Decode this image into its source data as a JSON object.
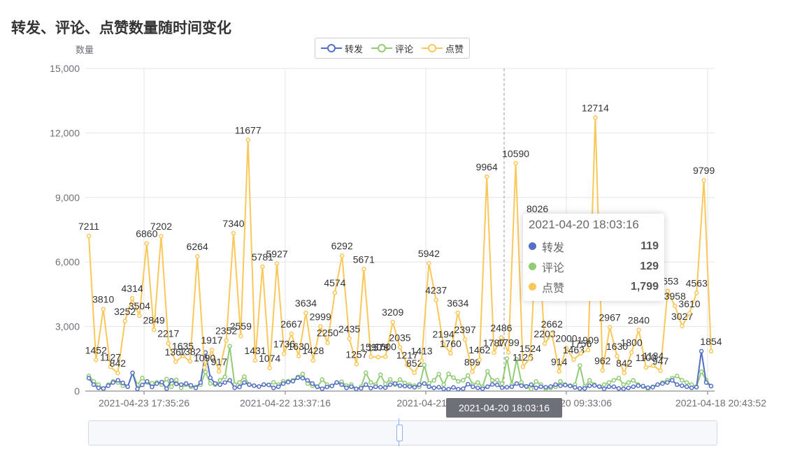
{
  "chart_data": {
    "type": "line",
    "title": "转发、评论、点赞数量随时间变化",
    "ylabel": "数量",
    "ylim": [
      0,
      15000
    ],
    "yticks": [
      "0",
      "3,000",
      "6,000",
      "9,000",
      "12,000",
      "15,000"
    ],
    "xtick_labels": [
      "2021-04-23 17:35:26",
      "2021-04-22 13:37:16",
      "2021-04-21 1",
      "2021-04-20 09:33:06",
      "2021-04-18 20:43:52"
    ],
    "colors": {
      "转发": "#5470c6",
      "评论": "#91cc75",
      "点赞": "#fac858"
    },
    "grid": "vertical-and-horizontal",
    "legend_position": "top-center",
    "series": [
      {
        "name": "转发",
        "values": [
          600,
          300,
          150,
          120,
          250,
          400,
          500,
          380,
          200,
          848,
          100,
          290,
          450,
          190,
          350,
          420,
          109,
          500,
          330,
          300,
          350,
          270,
          150,
          400,
          1795,
          620,
          350,
          300,
          400,
          500,
          155,
          192,
          400,
          300,
          250,
          210,
          300,
          289,
          148,
          200,
          350,
          420,
          460,
          620,
          600,
          500,
          350,
          200,
          110,
          190,
          240,
          400,
          300,
          150,
          200,
          100,
          130,
          300,
          140,
          200,
          180,
          160,
          300,
          350,
          250,
          230,
          210,
          175,
          300,
          350,
          200,
          150,
          180,
          100,
          87,
          172,
          90,
          110,
          320,
          200,
          150,
          110,
          200,
          310,
          290,
          160,
          180,
          200,
          350,
          250,
          220,
          300,
          150,
          200,
          180,
          210,
          300,
          250,
          280,
          240,
          170,
          120,
          119,
          250,
          260,
          210,
          100,
          200,
          200,
          120,
          100,
          150,
          200,
          250,
          230,
          160,
          180,
          300,
          350,
          400,
          500,
          300,
          250,
          200,
          150,
          180,
          1854,
          400,
          230
        ]
      },
      {
        "name": "评论",
        "values": [
          705,
          450,
          300,
          100,
          300,
          450,
          400,
          250,
          200,
          848,
          290,
          604,
          400,
          367,
          410,
          300,
          560,
          200,
          520,
          150,
          300,
          197,
          190,
          300,
          890,
          350,
          300,
          500,
          660,
          2086,
          300,
          400,
          675,
          300,
          250,
          210,
          300,
          289,
          406,
          300,
          450,
          462,
          500,
          660,
          793,
          350,
          250,
          190,
          535,
          300,
          240,
          400,
          436,
          250,
          300,
          100,
          200,
          852,
          400,
          300,
          762,
          330,
          541,
          300,
          537,
          375,
          300,
          250,
          200,
          1209,
          370,
          500,
          787,
          300,
          800,
          625,
          450,
          500,
          723,
          300,
          400,
          200,
          914,
          500,
          508,
          350,
          1509,
          300,
          1474,
          400,
          200,
          100,
          445,
          300,
          100,
          150,
          200,
          450,
          300,
          250,
          300,
          1184,
          200,
          500,
          300,
          200,
          300,
          400,
          500,
          600,
          300,
          400,
          500,
          300,
          200,
          100,
          200,
          300,
          400,
          500,
          600,
          700,
          500,
          400,
          300,
          200,
          902,
          514,
          230
        ]
      },
      {
        "name": "点赞",
        "values": [
          7211,
          1452,
          3810,
          1127,
          842,
          3252,
          4314,
          3504,
          6860,
          2849,
          7202,
          2217,
          1367,
          1635,
          1382,
          6264,
          1090,
          1917,
          917,
          2352,
          7340,
          2559,
          11677,
          1431,
          5781,
          1074,
          5927,
          1736,
          2667,
          1630,
          3634,
          1428,
          2999,
          2250,
          4574,
          6292,
          2435,
          1257,
          5671,
          1590,
          1578,
          1600,
          3209,
          2035,
          1217,
          852,
          1413,
          5942,
          4237,
          2194,
          1760,
          3634,
          2397,
          899,
          1462,
          9964,
          1787,
          2486,
          1799,
          10590,
          1126,
          1524,
          8026,
          2208,
          2662,
          914,
          2000,
          1463,
          1756,
          1909,
          12714,
          962,
          2967,
          1630,
          842,
          1800,
          2840,
          1100,
          1184,
          947,
          4653,
          3958,
          3027,
          3610,
          4563,
          9799,
          1854
        ]
      }
    ],
    "tooltip": {
      "title": "2021-04-20 18:03:16",
      "rows": [
        {
          "name": "转发",
          "value": "119"
        },
        {
          "name": "评论",
          "value": "129"
        },
        {
          "name": "点赞",
          "value": "1,799"
        }
      ]
    },
    "axis_pointer_label": "2021-04-20 18:03:16",
    "data_labels_like": [
      "7211",
      "6860",
      "7202",
      "6264",
      "7340",
      "11677",
      "5781",
      "5927",
      "6292",
      "5671",
      "5942",
      "9964",
      "10590",
      "12714",
      "9799",
      "8026",
      "4653",
      "4563"
    ]
  }
}
